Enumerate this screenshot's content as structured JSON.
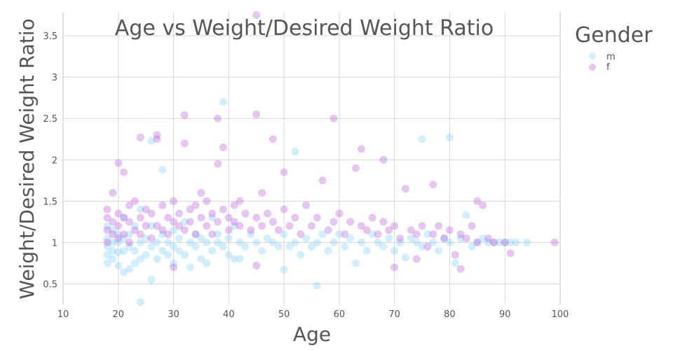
{
  "chart_data": {
    "type": "scatter",
    "title": "Age vs Weight/Desired Weight Ratio",
    "xlabel": "Age",
    "ylabel": "Weight/Desired Weight Ratio",
    "xlim": [
      10,
      100
    ],
    "ylim": [
      0.25,
      3.78
    ],
    "xticks": [
      10,
      20,
      30,
      40,
      50,
      60,
      70,
      80,
      90,
      100
    ],
    "yticks": [
      0.5,
      1,
      1.5,
      2,
      2.5,
      3,
      3.5
    ],
    "grid": true,
    "legend": {
      "title": "Gender",
      "placement": "top-right"
    },
    "series": [
      {
        "name": "m",
        "color": "#7ecff8",
        "points": [
          [
            18,
            0.75
          ],
          [
            18,
            0.85
          ],
          [
            18,
            0.95
          ],
          [
            18,
            1.05
          ],
          [
            18,
            1.2
          ],
          [
            19,
            0.8
          ],
          [
            19,
            0.9
          ],
          [
            19,
            1.0
          ],
          [
            19,
            1.15
          ],
          [
            20,
            0.72
          ],
          [
            20,
            0.88
          ],
          [
            20,
            1.0
          ],
          [
            20,
            1.1
          ],
          [
            21,
            0.64
          ],
          [
            21,
            0.9
          ],
          [
            21,
            1.05
          ],
          [
            21,
            1.3
          ],
          [
            22,
            0.68
          ],
          [
            22,
            0.95
          ],
          [
            22,
            1.1
          ],
          [
            23,
            0.75
          ],
          [
            23,
            0.9
          ],
          [
            23,
            1.2
          ],
          [
            24,
            0.28
          ],
          [
            24,
            0.8
          ],
          [
            24,
            1.0
          ],
          [
            24,
            1.4
          ],
          [
            25,
            0.85
          ],
          [
            25,
            1.05
          ],
          [
            26,
            0.55
          ],
          [
            26,
            0.95
          ],
          [
            26,
            1.2
          ],
          [
            26,
            2.23
          ],
          [
            27,
            0.8
          ],
          [
            27,
            1.0
          ],
          [
            28,
            1.88
          ],
          [
            28,
            0.9
          ],
          [
            28,
            1.1
          ],
          [
            29,
            0.85
          ],
          [
            29,
            1.0
          ],
          [
            30,
            0.75
          ],
          [
            30,
            0.95
          ],
          [
            30,
            1.15
          ],
          [
            31,
            0.9
          ],
          [
            31,
            1.05
          ],
          [
            32,
            0.85
          ],
          [
            32,
            1.25
          ],
          [
            33,
            0.7
          ],
          [
            33,
            1.0
          ],
          [
            34,
            0.95
          ],
          [
            34,
            1.1
          ],
          [
            35,
            0.8
          ],
          [
            35,
            1.05
          ],
          [
            36,
            0.75
          ],
          [
            36,
            1.0
          ],
          [
            37,
            0.9
          ],
          [
            37,
            1.3
          ],
          [
            38,
            1.0
          ],
          [
            38,
            1.1
          ],
          [
            39,
            2.7
          ],
          [
            39,
            0.95
          ],
          [
            40,
            0.85
          ],
          [
            40,
            1.05
          ],
          [
            41,
            0.8
          ],
          [
            41,
            1.2
          ],
          [
            42,
            0.8
          ],
          [
            42,
            1.0
          ],
          [
            43,
            0.95
          ],
          [
            44,
            1.1
          ],
          [
            45,
            1.0
          ],
          [
            46,
            0.9
          ],
          [
            47,
            1.05
          ],
          [
            48,
            1.0
          ],
          [
            49,
            0.95
          ],
          [
            50,
            0.67
          ],
          [
            50,
            1.1
          ],
          [
            51,
            0.95
          ],
          [
            52,
            2.1
          ],
          [
            52,
            1.0
          ],
          [
            53,
            0.85
          ],
          [
            54,
            1.05
          ],
          [
            55,
            0.95
          ],
          [
            56,
            0.48
          ],
          [
            56,
            1.0
          ],
          [
            57,
            1.1
          ],
          [
            58,
            0.9
          ],
          [
            59,
            1.0
          ],
          [
            60,
            1.1
          ],
          [
            61,
            0.95
          ],
          [
            62,
            1.05
          ],
          [
            63,
            0.75
          ],
          [
            64,
            1.0
          ],
          [
            65,
            0.9
          ],
          [
            66,
            1.1
          ],
          [
            67,
            1.0
          ],
          [
            68,
            0.95
          ],
          [
            69,
            1.05
          ],
          [
            70,
            0.9
          ],
          [
            71,
            1.0
          ],
          [
            72,
            0.82
          ],
          [
            73,
            1.05
          ],
          [
            74,
            1.0
          ],
          [
            75,
            2.25
          ],
          [
            75,
            0.95
          ],
          [
            76,
            1.1
          ],
          [
            77,
            1.0
          ],
          [
            78,
            0.9
          ],
          [
            79,
            1.05
          ],
          [
            80,
            2.27
          ],
          [
            80,
            1.0
          ],
          [
            81,
            0.75
          ],
          [
            82,
            1.05
          ],
          [
            83,
            1.33
          ],
          [
            84,
            0.95
          ],
          [
            85,
            1.0
          ],
          [
            86,
            1.05
          ],
          [
            87,
            1.0
          ],
          [
            88,
            1.0
          ],
          [
            89,
            1.0
          ],
          [
            90,
            1.0
          ],
          [
            91,
            1.0
          ],
          [
            92,
            1.0
          ],
          [
            94,
            1.0
          ]
        ]
      },
      {
        "name": "f",
        "color": "#b85ad6",
        "points": [
          [
            18,
            1.0
          ],
          [
            18,
            1.15
          ],
          [
            18,
            1.3
          ],
          [
            18,
            1.4
          ],
          [
            19,
            1.1
          ],
          [
            19,
            1.25
          ],
          [
            19,
            1.6
          ],
          [
            20,
            1.96
          ],
          [
            20,
            1.05
          ],
          [
            20,
            1.2
          ],
          [
            20,
            1.35
          ],
          [
            21,
            1.85
          ],
          [
            21,
            1.1
          ],
          [
            21,
            1.3
          ],
          [
            22,
            1.0
          ],
          [
            22,
            1.25
          ],
          [
            22,
            1.45
          ],
          [
            23,
            1.15
          ],
          [
            23,
            1.5
          ],
          [
            24,
            2.27
          ],
          [
            24,
            1.1
          ],
          [
            24,
            1.3
          ],
          [
            25,
            1.2
          ],
          [
            25,
            1.4
          ],
          [
            26,
            1.05
          ],
          [
            26,
            1.35
          ],
          [
            27,
            2.3
          ],
          [
            27,
            2.25
          ],
          [
            27,
            1.2
          ],
          [
            28,
            1.15
          ],
          [
            28,
            1.45
          ],
          [
            29,
            1.1
          ],
          [
            29,
            1.3
          ],
          [
            30,
            0.7
          ],
          [
            30,
            1.25
          ],
          [
            30,
            1.5
          ],
          [
            31,
            1.2
          ],
          [
            31,
            1.35
          ],
          [
            32,
            2.54
          ],
          [
            32,
            2.2
          ],
          [
            32,
            1.15
          ],
          [
            33,
            1.4
          ],
          [
            33,
            1.25
          ],
          [
            34,
            1.1
          ],
          [
            34,
            1.45
          ],
          [
            35,
            1.3
          ],
          [
            35,
            1.6
          ],
          [
            36,
            1.2
          ],
          [
            36,
            1.5
          ],
          [
            37,
            1.35
          ],
          [
            37,
            1.1
          ],
          [
            38,
            2.5
          ],
          [
            38,
            1.95
          ],
          [
            38,
            1.25
          ],
          [
            39,
            2.15
          ],
          [
            39,
            1.4
          ],
          [
            40,
            1.3
          ],
          [
            40,
            1.15
          ],
          [
            41,
            1.45
          ],
          [
            41,
            1.25
          ],
          [
            42,
            1.2
          ],
          [
            42,
            1.5
          ],
          [
            43,
            1.35
          ],
          [
            44,
            1.15
          ],
          [
            45,
            3.75
          ],
          [
            45,
            2.55
          ],
          [
            45,
            1.3
          ],
          [
            45,
            0.72
          ],
          [
            46,
            1.2
          ],
          [
            46,
            1.6
          ],
          [
            47,
            1.35
          ],
          [
            48,
            2.25
          ],
          [
            48,
            1.25
          ],
          [
            49,
            1.15
          ],
          [
            50,
            1.4
          ],
          [
            50,
            1.85
          ],
          [
            51,
            1.2
          ],
          [
            52,
            1.3
          ],
          [
            53,
            1.1
          ],
          [
            54,
            1.45
          ],
          [
            55,
            1.2
          ],
          [
            56,
            1.3
          ],
          [
            57,
            1.75
          ],
          [
            58,
            1.15
          ],
          [
            59,
            2.5
          ],
          [
            59,
            1.25
          ],
          [
            60,
            1.35
          ],
          [
            61,
            1.1
          ],
          [
            62,
            1.25
          ],
          [
            63,
            1.9
          ],
          [
            64,
            2.13
          ],
          [
            64,
            1.2
          ],
          [
            65,
            1.15
          ],
          [
            66,
            1.3
          ],
          [
            67,
            1.1
          ],
          [
            68,
            2.0
          ],
          [
            68,
            1.25
          ],
          [
            69,
            1.15
          ],
          [
            70,
            0.7
          ],
          [
            70,
            1.2
          ],
          [
            71,
            1.05
          ],
          [
            72,
            1.65
          ],
          [
            73,
            1.15
          ],
          [
            74,
            0.8
          ],
          [
            74,
            1.1
          ],
          [
            75,
            1.2
          ],
          [
            76,
            0.95
          ],
          [
            77,
            1.7
          ],
          [
            77,
            1.1
          ],
          [
            78,
            1.2
          ],
          [
            79,
            1.05
          ],
          [
            80,
            1.15
          ],
          [
            81,
            0.85
          ],
          [
            82,
            0.68
          ],
          [
            82,
            1.1
          ],
          [
            83,
            1.05
          ],
          [
            84,
            1.2
          ],
          [
            85,
            1.5
          ],
          [
            85,
            1.0
          ],
          [
            86,
            1.45
          ],
          [
            87,
            1.05
          ],
          [
            88,
            1.0
          ],
          [
            90,
            1.0
          ],
          [
            91,
            0.87
          ],
          [
            99,
            1.0
          ]
        ]
      }
    ]
  }
}
